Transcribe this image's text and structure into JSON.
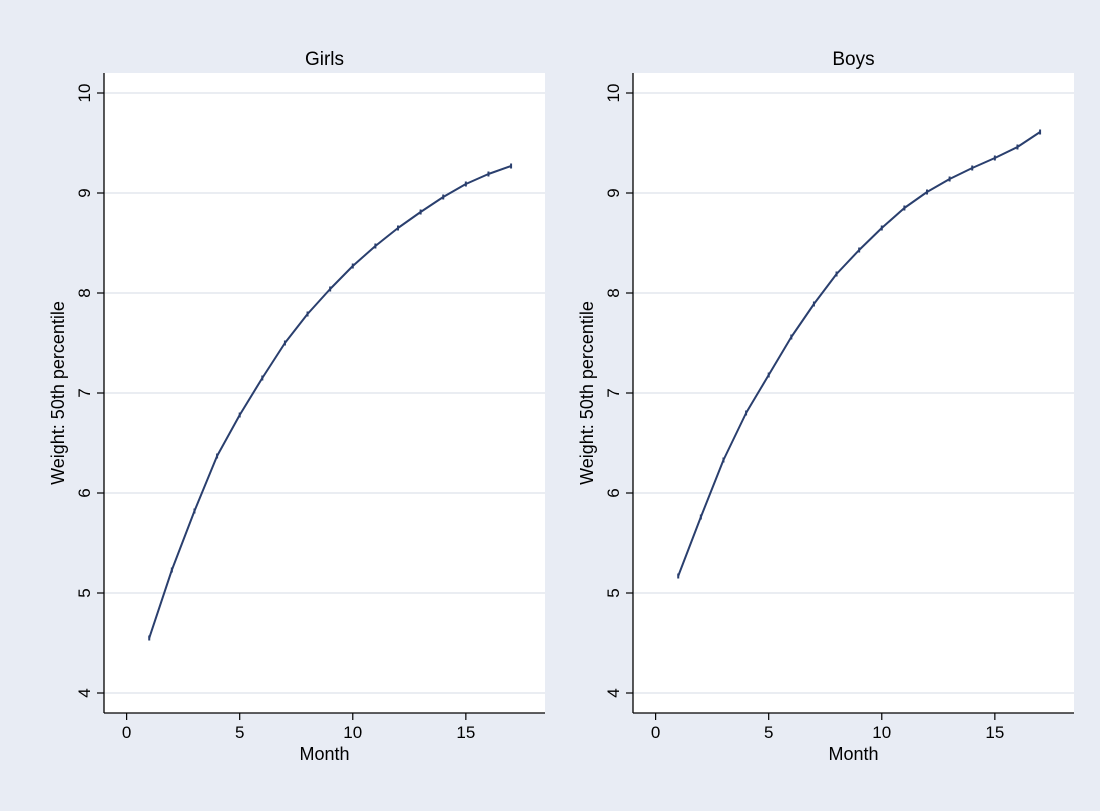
{
  "chart_data": [
    {
      "type": "line",
      "title": "Girls",
      "xlabel": "Month",
      "ylabel": "Weight: 50th percentile",
      "xlim": [
        -1,
        18.5
      ],
      "ylim": [
        3.8,
        10.2
      ],
      "xticks": [
        0,
        5,
        10,
        15
      ],
      "yticks": [
        4,
        5,
        6,
        7,
        8,
        9,
        10
      ],
      "grid": "horizontal",
      "series": [
        {
          "x": [
            1,
            2,
            3,
            4,
            5,
            6,
            7,
            8,
            9,
            10,
            11,
            12,
            13,
            14,
            15,
            16,
            17
          ],
          "y": [
            4.55,
            5.23,
            5.82,
            6.37,
            6.78,
            7.15,
            7.5,
            7.79,
            8.04,
            8.27,
            8.47,
            8.65,
            8.81,
            8.96,
            9.09,
            9.19,
            9.27
          ]
        }
      ]
    },
    {
      "type": "line",
      "title": "Boys",
      "xlabel": "Month",
      "ylabel": "Weight: 50th percentile",
      "xlim": [
        -1,
        18.5
      ],
      "ylim": [
        3.8,
        10.2
      ],
      "xticks": [
        0,
        5,
        10,
        15
      ],
      "yticks": [
        4,
        5,
        6,
        7,
        8,
        9,
        10
      ],
      "grid": "horizontal",
      "series": [
        {
          "x": [
            1,
            2,
            3,
            4,
            5,
            6,
            7,
            8,
            9,
            10,
            11,
            12,
            13,
            14,
            15,
            16,
            17
          ],
          "y": [
            5.17,
            5.76,
            6.33,
            6.8,
            7.18,
            7.56,
            7.89,
            8.19,
            8.43,
            8.65,
            8.85,
            9.01,
            9.14,
            9.25,
            9.35,
            9.46,
            9.61
          ]
        }
      ]
    }
  ],
  "colors": {
    "outer_background": "#e8ecf4",
    "plot_background": "#ffffff",
    "grid": "#e4e7ee",
    "line": "#2a3f6e",
    "axis": "#000000"
  }
}
